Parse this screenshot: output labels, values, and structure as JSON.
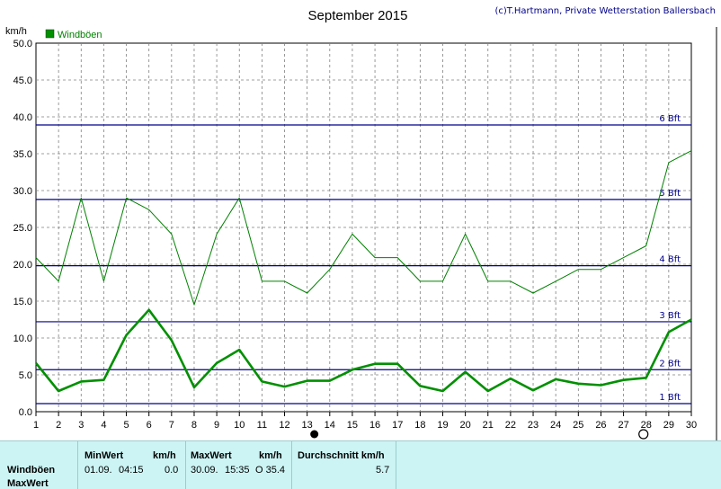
{
  "header": {
    "title": "September 2015",
    "credit": "(c)T.Hartmann, Private Wetterstation Ballersbach"
  },
  "colors": {
    "thin_line": "#008000",
    "thick_line": "#009000",
    "bft_line": "#00008b",
    "footer_bg": "#ccf4f4"
  },
  "chart_data": {
    "type": "line",
    "ylabel": "km/h",
    "ylim": [
      0,
      50
    ],
    "yticks": [
      "0.0",
      "5.0",
      "10.0",
      "15.0",
      "20.0",
      "25.0",
      "30.0",
      "35.0",
      "40.0",
      "45.0",
      "50.0"
    ],
    "xlim": [
      1,
      30
    ],
    "x": [
      1,
      2,
      3,
      4,
      5,
      6,
      7,
      8,
      9,
      10,
      11,
      12,
      13,
      14,
      15,
      16,
      17,
      18,
      19,
      20,
      21,
      22,
      23,
      24,
      25,
      26,
      27,
      28,
      29,
      30
    ],
    "legend": "Windböen",
    "series": [
      {
        "name": "Windböen",
        "style": "thin",
        "values": [
          20.9,
          17.7,
          29.0,
          17.7,
          29.0,
          27.4,
          24.1,
          14.5,
          24.1,
          29.0,
          17.7,
          17.7,
          16.1,
          19.3,
          24.1,
          20.9,
          20.9,
          17.7,
          17.7,
          24.1,
          17.7,
          17.7,
          16.1,
          17.7,
          19.3,
          19.3,
          20.9,
          22.5,
          33.8,
          35.4
        ]
      },
      {
        "style": "thick",
        "values": [
          6.6,
          2.8,
          4.1,
          4.3,
          10.4,
          13.8,
          9.7,
          3.3,
          6.6,
          8.4,
          4.1,
          3.4,
          4.2,
          4.2,
          5.7,
          6.5,
          6.5,
          3.5,
          2.8,
          5.4,
          2.8,
          4.5,
          2.9,
          4.4,
          3.8,
          3.6,
          4.3,
          4.6,
          10.8,
          12.5
        ]
      }
    ],
    "beaufort": [
      {
        "label": "1 Bft",
        "value": 1.1
      },
      {
        "label": "2 Bft",
        "value": 5.7
      },
      {
        "label": "3 Bft",
        "value": 12.2
      },
      {
        "label": "4 Bft",
        "value": 19.8
      },
      {
        "label": "5 Bft",
        "value": 28.8
      },
      {
        "label": "6 Bft",
        "value": 38.9
      }
    ],
    "moon_markers": [
      {
        "x": 13,
        "phase": "new"
      },
      {
        "x": 28,
        "phase": "full"
      }
    ]
  },
  "footer": {
    "row_label": "Windböen",
    "row_label2": "MaxWert",
    "min_header": "MinWert",
    "min_unit": "km/h",
    "min_date": "01.09.",
    "min_time": "04:15",
    "min_value": "0.0",
    "max_header": "MaxWert",
    "max_unit": "km/h",
    "max_date": "30.09.",
    "max_time": "15:35",
    "max_value": "O 35.4",
    "avg_header": "Durchschnitt km/h",
    "avg_value": "5.7"
  }
}
